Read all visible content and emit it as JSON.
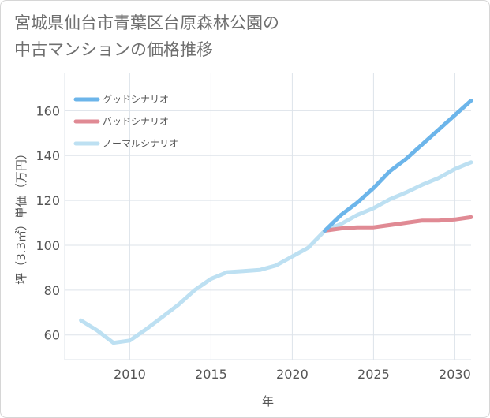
{
  "chart_data": {
    "type": "line",
    "title_lines": [
      "宮城県仙台市青葉区台原森林公園の",
      "中古マンションの価格推移"
    ],
    "xlabel": "年",
    "ylabel": "坪（3.3㎡）単価（万円）",
    "xlim": [
      2006,
      2031
    ],
    "ylim": [
      49,
      177
    ],
    "x_ticks": [
      2010,
      2015,
      2020,
      2025,
      2030
    ],
    "y_ticks": [
      60,
      80,
      100,
      120,
      140,
      160
    ],
    "grid": true,
    "legend_position": "top-left",
    "series": [
      {
        "name": "グッドシナリオ",
        "color": "#6cb5ea",
        "x": [
          2022,
          2023,
          2024,
          2025,
          2026,
          2027,
          2028,
          2029,
          2030,
          2031
        ],
        "y": [
          106.5,
          113.5,
          119,
          125.5,
          133,
          138.5,
          145,
          151.5,
          158,
          164.5
        ]
      },
      {
        "name": "バッドシナリオ",
        "color": "#e08a94",
        "x": [
          2022,
          2023,
          2024,
          2025,
          2026,
          2027,
          2028,
          2029,
          2030,
          2031
        ],
        "y": [
          106.5,
          107.5,
          108,
          108,
          109,
          110,
          111,
          111,
          111.5,
          112.5
        ]
      },
      {
        "name": "ノーマルシナリオ",
        "color": "#bde0f2",
        "x": [
          2007,
          2008,
          2009,
          2010,
          2011,
          2012,
          2013,
          2014,
          2015,
          2016,
          2017,
          2018,
          2019,
          2020,
          2021,
          2022,
          2023,
          2024,
          2025,
          2026,
          2027,
          2028,
          2029,
          2030,
          2031
        ],
        "y": [
          66.5,
          62,
          56.5,
          57.5,
          62.5,
          68,
          73.5,
          80,
          85,
          88,
          88.5,
          89,
          91,
          95,
          99,
          106.5,
          109.5,
          113.5,
          116.5,
          120.5,
          123.5,
          127,
          130,
          134,
          137
        ]
      }
    ]
  }
}
